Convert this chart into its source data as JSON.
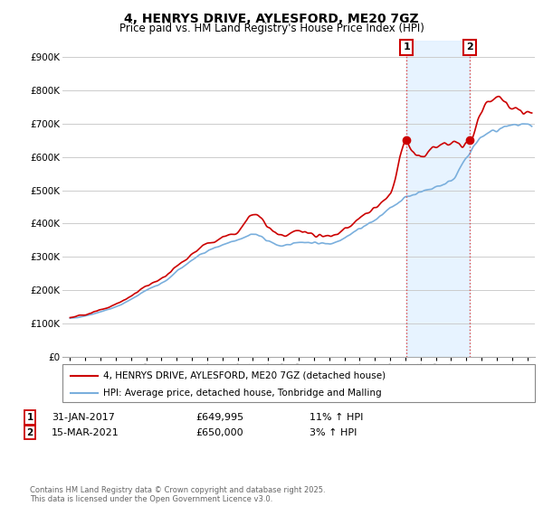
{
  "title": "4, HENRYS DRIVE, AYLESFORD, ME20 7GZ",
  "subtitle": "Price paid vs. HM Land Registry's House Price Index (HPI)",
  "legend_line1": "4, HENRYS DRIVE, AYLESFORD, ME20 7GZ (detached house)",
  "legend_line2": "HPI: Average price, detached house, Tonbridge and Malling",
  "annotation1_label": "1",
  "annotation1_date": "31-JAN-2017",
  "annotation1_price": "£649,995",
  "annotation1_hpi": "11% ↑ HPI",
  "annotation2_label": "2",
  "annotation2_date": "15-MAR-2021",
  "annotation2_price": "£650,000",
  "annotation2_hpi": "3% ↑ HPI",
  "footer": "Contains HM Land Registry data © Crown copyright and database right 2025.\nThis data is licensed under the Open Government Licence v3.0.",
  "ylim": [
    0,
    950000
  ],
  "yticks": [
    0,
    100000,
    200000,
    300000,
    400000,
    500000,
    600000,
    700000,
    800000,
    900000
  ],
  "ytick_labels": [
    "£0",
    "£100K",
    "£200K",
    "£300K",
    "£400K",
    "£500K",
    "£600K",
    "£700K",
    "£800K",
    "£900K"
  ],
  "house_color": "#cc0000",
  "hpi_color": "#7aafdd",
  "vline1_x": 2017.08,
  "vline2_x": 2021.21,
  "vline_color": "#dd4444",
  "sale1_price": 649995,
  "sale1_year": 2017.08,
  "sale2_price": 650000,
  "sale2_year": 2021.21,
  "background_color": "#ffffff",
  "grid_color": "#cccccc",
  "shaded_color": "#ddeeff",
  "xmin": 1994.5,
  "xmax": 2025.5
}
